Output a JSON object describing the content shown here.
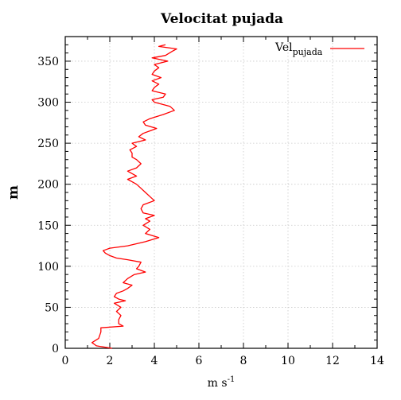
{
  "chart_data": {
    "type": "line",
    "title": "Velocitat pujada",
    "xlabel": "m s",
    "xlabel_superscript": "-1",
    "ylabel": "m",
    "xlim": [
      0,
      14
    ],
    "ylim": [
      0,
      380
    ],
    "xticks": [
      0,
      2,
      4,
      6,
      8,
      10,
      12,
      14
    ],
    "yticks": [
      0,
      50,
      100,
      150,
      200,
      250,
      300,
      350
    ],
    "grid": true,
    "legend_position": "top-right",
    "series": [
      {
        "name": "Vel",
        "name_subscript": "pujada",
        "color": "#ff0000",
        "points": [
          [
            2.1,
            0
          ],
          [
            1.4,
            3
          ],
          [
            1.2,
            7
          ],
          [
            1.5,
            12
          ],
          [
            1.6,
            20
          ],
          [
            1.6,
            25
          ],
          [
            2.6,
            27
          ],
          [
            2.4,
            30
          ],
          [
            2.4,
            35
          ],
          [
            2.5,
            40
          ],
          [
            2.3,
            45
          ],
          [
            2.5,
            50
          ],
          [
            2.2,
            55
          ],
          [
            2.7,
            58
          ],
          [
            2.4,
            60
          ],
          [
            2.2,
            63
          ],
          [
            2.3,
            67
          ],
          [
            2.6,
            70
          ],
          [
            2.8,
            73
          ],
          [
            3.0,
            77
          ],
          [
            2.6,
            80
          ],
          [
            2.8,
            85
          ],
          [
            3.1,
            90
          ],
          [
            3.6,
            93
          ],
          [
            3.2,
            97
          ],
          [
            3.3,
            100
          ],
          [
            3.4,
            105
          ],
          [
            2.8,
            108
          ],
          [
            2.3,
            110
          ],
          [
            2.0,
            113
          ],
          [
            1.8,
            116
          ],
          [
            1.7,
            119
          ],
          [
            2.0,
            122
          ],
          [
            2.8,
            125
          ],
          [
            3.6,
            130
          ],
          [
            4.2,
            135
          ],
          [
            3.6,
            140
          ],
          [
            3.8,
            145
          ],
          [
            3.5,
            150
          ],
          [
            3.8,
            155
          ],
          [
            3.6,
            158
          ],
          [
            4.0,
            162
          ],
          [
            3.5,
            165
          ],
          [
            3.4,
            170
          ],
          [
            3.5,
            175
          ],
          [
            4.0,
            180
          ],
          [
            3.8,
            185
          ],
          [
            3.6,
            190
          ],
          [
            3.4,
            195
          ],
          [
            3.2,
            200
          ],
          [
            3.0,
            203
          ],
          [
            2.8,
            206
          ],
          [
            3.2,
            210
          ],
          [
            3.0,
            213
          ],
          [
            2.8,
            216
          ],
          [
            3.2,
            220
          ],
          [
            3.4,
            225
          ],
          [
            3.2,
            230
          ],
          [
            3.0,
            233
          ],
          [
            3.0,
            238
          ],
          [
            2.9,
            242
          ],
          [
            3.2,
            246
          ],
          [
            3.0,
            250
          ],
          [
            3.6,
            254
          ],
          [
            3.3,
            258
          ],
          [
            3.5,
            262
          ],
          [
            3.8,
            265
          ],
          [
            4.1,
            268
          ],
          [
            3.6,
            272
          ],
          [
            3.5,
            276
          ],
          [
            3.8,
            280
          ],
          [
            4.4,
            285
          ],
          [
            4.9,
            290
          ],
          [
            4.7,
            295
          ],
          [
            4.0,
            300
          ],
          [
            3.9,
            303
          ],
          [
            4.4,
            306
          ],
          [
            4.5,
            310
          ],
          [
            3.9,
            314
          ],
          [
            4.0,
            318
          ],
          [
            4.2,
            322
          ],
          [
            3.9,
            326
          ],
          [
            4.3,
            330
          ],
          [
            3.9,
            334
          ],
          [
            4.0,
            338
          ],
          [
            4.2,
            342
          ],
          [
            4.0,
            346
          ],
          [
            4.6,
            350
          ],
          [
            3.9,
            354
          ],
          [
            4.5,
            357
          ],
          [
            4.8,
            362
          ],
          [
            5.0,
            365
          ],
          [
            4.2,
            368
          ],
          [
            4.5,
            370
          ]
        ]
      }
    ]
  }
}
